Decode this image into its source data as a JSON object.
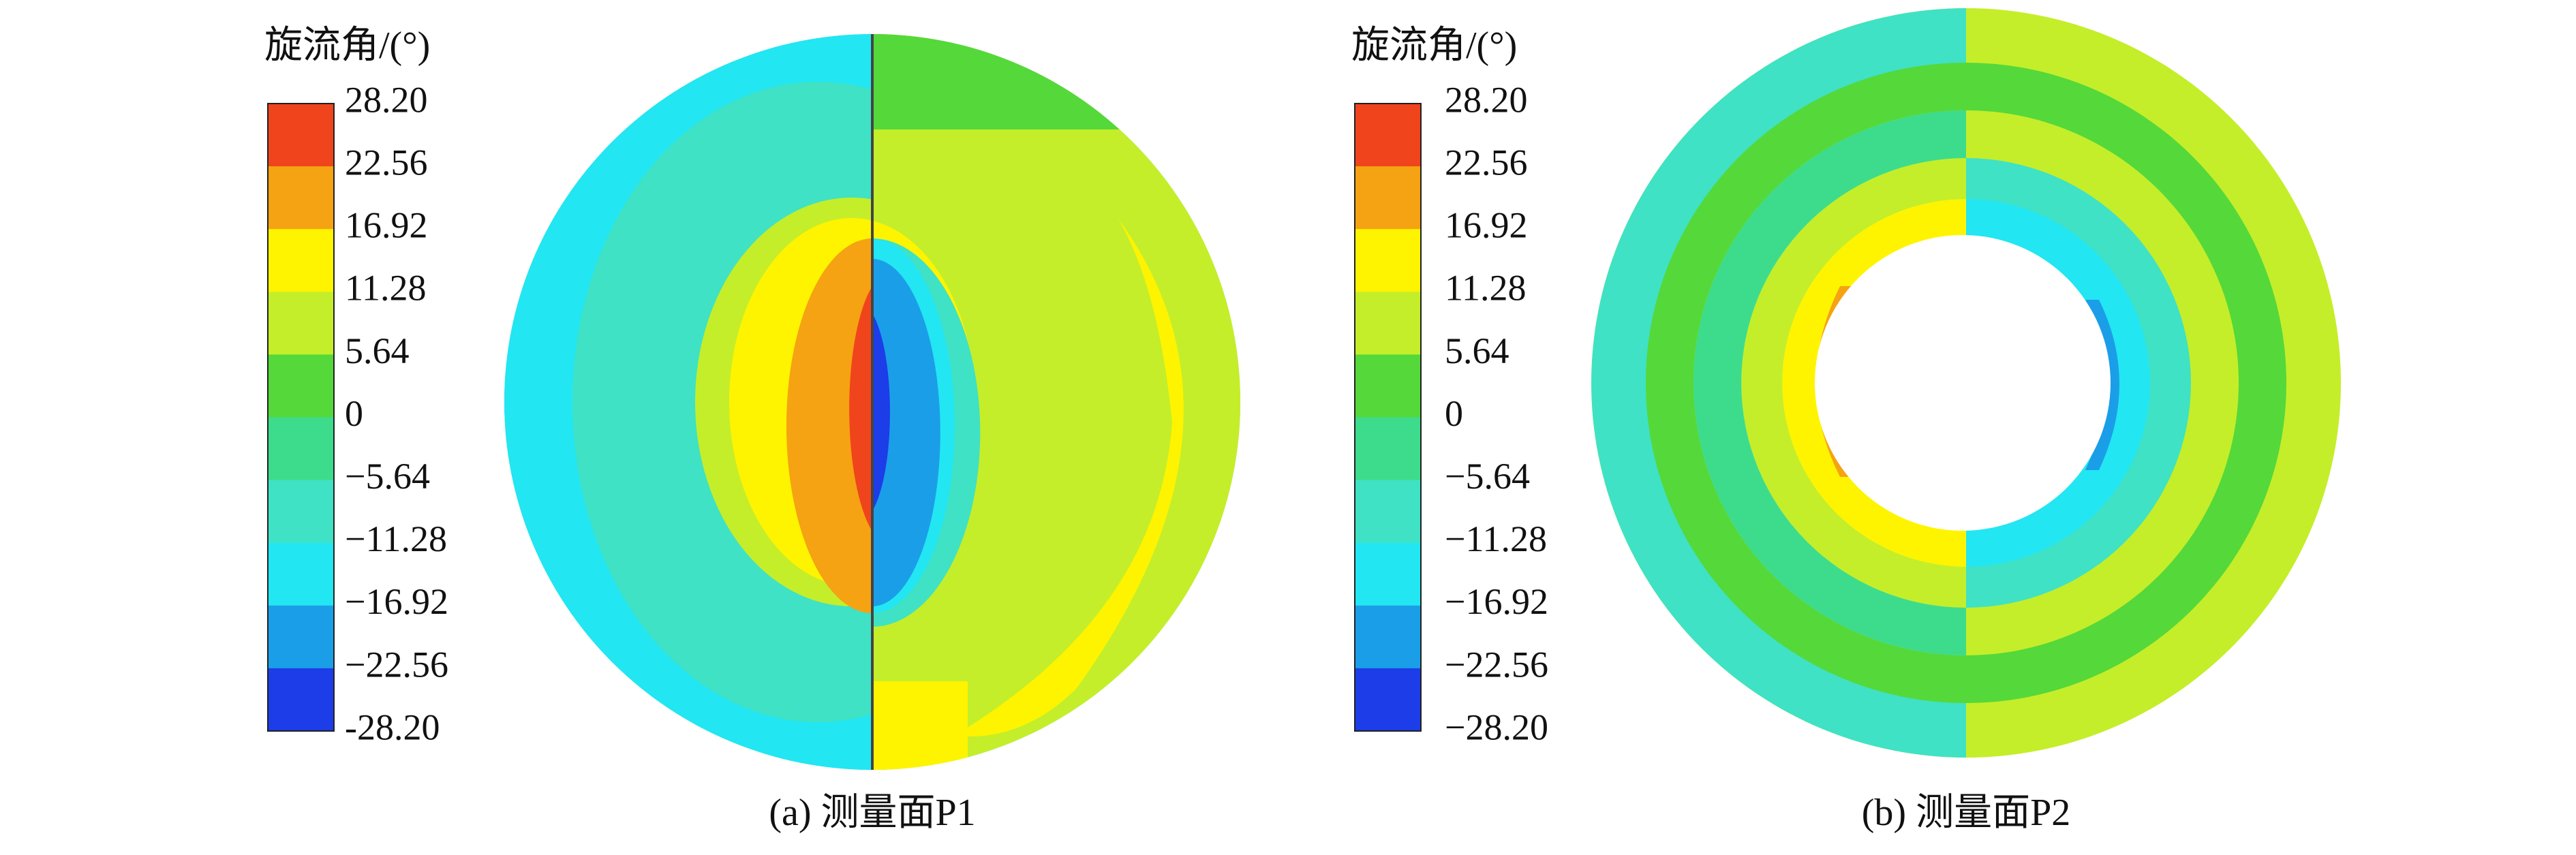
{
  "panels": [
    {
      "colorbar": {
        "title": "旋流角/(°)",
        "labels": [
          "28.20",
          "22.56",
          "16.92",
          "11.28",
          "5.64",
          "0",
          "−5.64",
          "−11.28",
          "−16.92",
          "−22.56",
          "-28.20"
        ]
      },
      "caption": "(a) 测量面P1"
    },
    {
      "colorbar": {
        "title": "旋流角/(°)",
        "labels": [
          "28.20",
          "22.56",
          "16.92",
          "11.28",
          "5.64",
          "0",
          "−5.64",
          "−11.28",
          "−16.92",
          "−22.56",
          "−28.20"
        ]
      },
      "caption": "(b) 测量面P2"
    }
  ],
  "band_colors": [
    "#f0441c",
    "#f5a312",
    "#fff400",
    "#c4ee2a",
    "#55d83a",
    "#3ddc8c",
    "#3fe2c4",
    "#22e6f2",
    "#1b9ee8",
    "#1c3de8"
  ]
}
